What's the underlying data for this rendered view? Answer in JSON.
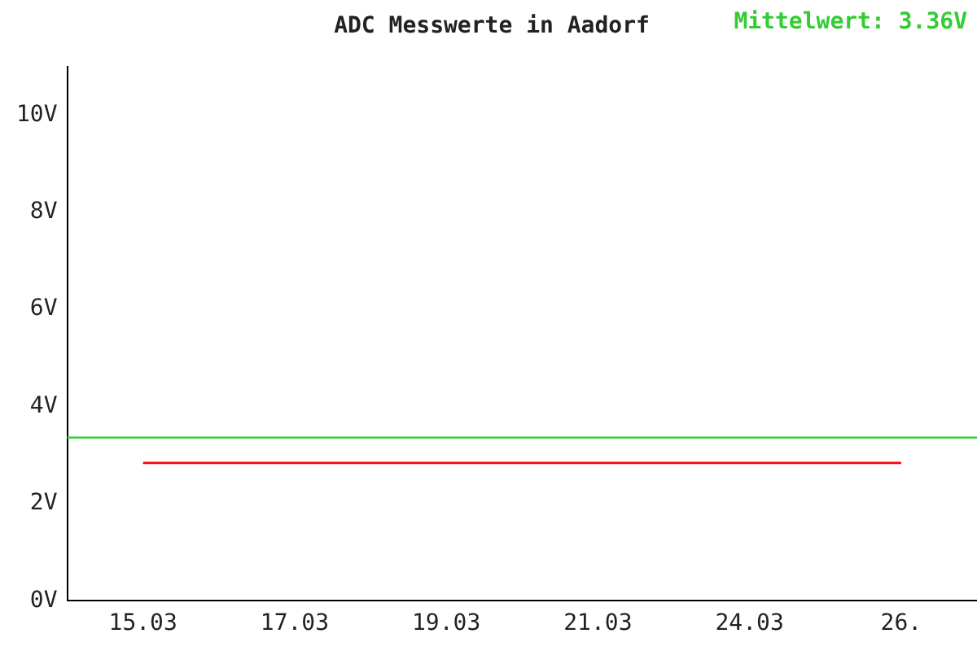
{
  "chart_data": {
    "type": "line",
    "title": "ADC Messwerte in Aadorf",
    "categories": [
      "15.03",
      "17.03",
      "19.03",
      "21.03",
      "24.03",
      "26."
    ],
    "series": [
      {
        "color": "#ff0000",
        "values": [
          2.84,
          2.84,
          2.84,
          2.84,
          2.84,
          2.84
        ]
      }
    ],
    "ylim": [
      0,
      11
    ],
    "yticks": [
      {
        "value": 0,
        "label": "0V"
      },
      {
        "value": 2,
        "label": "2V"
      },
      {
        "value": 4,
        "label": "4V"
      },
      {
        "value": 6,
        "label": "6V"
      },
      {
        "value": 8,
        "label": "8V"
      },
      {
        "value": 10,
        "label": "10V"
      }
    ],
    "ref_lines": [
      {
        "axis": "y",
        "value": 3.36,
        "label": "Mittelwert: 3.36V",
        "color": "#33cc33"
      }
    ],
    "grid": false,
    "legend": false,
    "marker": "none",
    "line_style": "solid"
  }
}
